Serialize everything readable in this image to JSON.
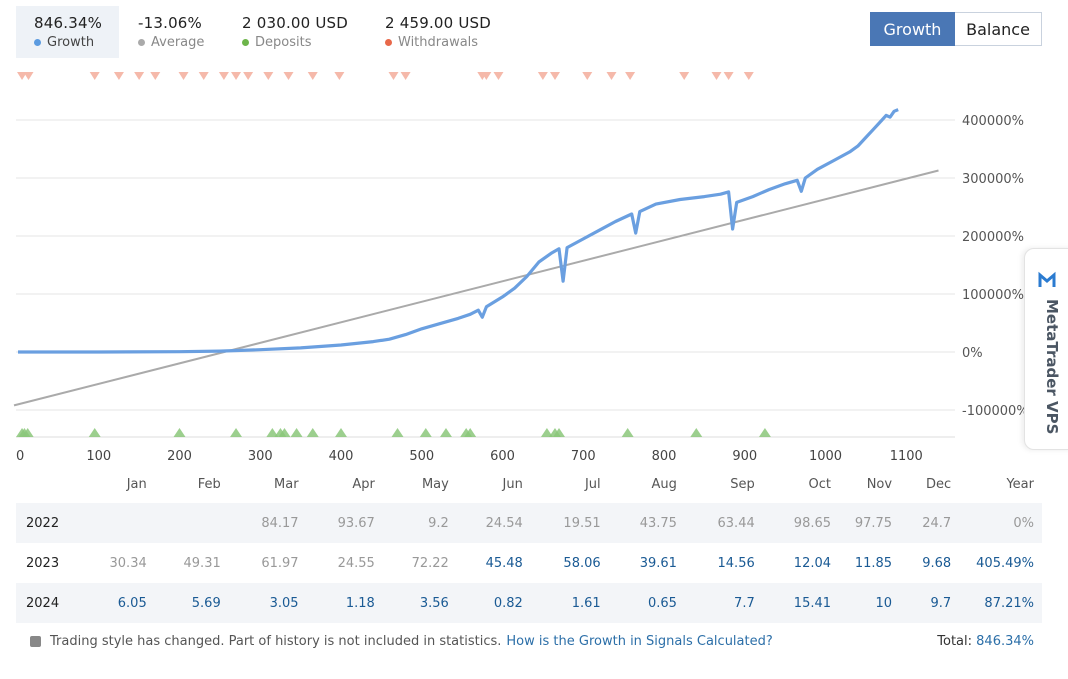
{
  "stats": [
    {
      "value": "846.34%",
      "label": "Growth",
      "color": "#5b9be0",
      "active": true
    },
    {
      "value": "-13.06%",
      "label": "Average",
      "color": "#aaaaaa",
      "active": false
    },
    {
      "value": "2 030.00 USD",
      "label": "Deposits",
      "color": "#6db54a",
      "active": false
    },
    {
      "value": "2 459.00 USD",
      "label": "Withdrawals",
      "color": "#e8684a",
      "active": false
    }
  ],
  "toggle": {
    "growth": "Growth",
    "balance": "Balance"
  },
  "side_tab": "MetaTrader VPS",
  "chart_data": {
    "type": "line",
    "x_ticks": [
      0,
      100,
      200,
      300,
      400,
      500,
      600,
      700,
      800,
      900,
      1000,
      1100
    ],
    "y_ticks": [
      {
        "value": -100000,
        "label": "-100000%"
      },
      {
        "value": 0,
        "label": "0%"
      },
      {
        "value": 100000,
        "label": "100000%"
      },
      {
        "value": 200000,
        "label": "200000%"
      },
      {
        "value": 300000,
        "label": "300000%"
      },
      {
        "value": 400000,
        "label": "400000%"
      }
    ],
    "xlim": [
      0,
      1150
    ],
    "ylim": [
      -145000,
      430000
    ],
    "grid": true,
    "series": [
      {
        "color": "#6a9fe0",
        "points": [
          [
            0,
            0
          ],
          [
            100,
            0
          ],
          [
            200,
            500
          ],
          [
            250,
            1500
          ],
          [
            300,
            4000
          ],
          [
            350,
            7000
          ],
          [
            400,
            12000
          ],
          [
            440,
            18000
          ],
          [
            460,
            22000
          ],
          [
            480,
            30000
          ],
          [
            500,
            40000
          ],
          [
            520,
            48000
          ],
          [
            545,
            58000
          ],
          [
            560,
            65000
          ],
          [
            570,
            72000
          ],
          [
            575,
            60000
          ],
          [
            580,
            78000
          ],
          [
            600,
            95000
          ],
          [
            615,
            110000
          ],
          [
            630,
            130000
          ],
          [
            645,
            155000
          ],
          [
            660,
            170000
          ],
          [
            670,
            178000
          ],
          [
            675,
            122000
          ],
          [
            680,
            180000
          ],
          [
            700,
            195000
          ],
          [
            720,
            210000
          ],
          [
            740,
            225000
          ],
          [
            760,
            238000
          ],
          [
            765,
            205000
          ],
          [
            770,
            242000
          ],
          [
            790,
            255000
          ],
          [
            820,
            263000
          ],
          [
            850,
            268000
          ],
          [
            870,
            272000
          ],
          [
            880,
            276000
          ],
          [
            885,
            212000
          ],
          [
            890,
            258000
          ],
          [
            910,
            268000
          ],
          [
            930,
            280000
          ],
          [
            950,
            290000
          ],
          [
            965,
            296000
          ],
          [
            970,
            277000
          ],
          [
            975,
            300000
          ],
          [
            990,
            315000
          ],
          [
            1010,
            330000
          ],
          [
            1030,
            345000
          ],
          [
            1040,
            355000
          ],
          [
            1050,
            370000
          ],
          [
            1060,
            385000
          ],
          [
            1070,
            400000
          ],
          [
            1075,
            408000
          ],
          [
            1080,
            405000
          ],
          [
            1085,
            415000
          ],
          [
            1090,
            418000
          ]
        ]
      },
      {
        "color": "#aaaaaa",
        "points": [
          [
            -5,
            -92000
          ],
          [
            1140,
            313000
          ]
        ]
      }
    ],
    "withdrawal_markers": [
      5,
      13,
      95,
      125,
      150,
      170,
      205,
      230,
      255,
      270,
      285,
      310,
      335,
      365,
      398,
      465,
      480,
      575,
      580,
      595,
      650,
      665,
      705,
      735,
      758,
      825,
      865,
      880,
      905
    ],
    "deposit_markers": [
      5,
      8,
      12,
      95,
      200,
      270,
      315,
      325,
      330,
      345,
      365,
      400,
      470,
      505,
      530,
      555,
      560,
      655,
      665,
      670,
      755,
      840,
      925
    ]
  },
  "table": {
    "headers": [
      "",
      "Jan",
      "Feb",
      "Mar",
      "Apr",
      "May",
      "Jun",
      "Jul",
      "Aug",
      "Sep",
      "Oct",
      "Nov",
      "Dec",
      "Year"
    ],
    "rows": [
      {
        "year": "2022",
        "cells": [
          "",
          "",
          "84.17",
          "93.67",
          "9.2",
          "24.54",
          "19.51",
          "43.75",
          "63.44",
          "98.65",
          "97.75",
          "24.7",
          "0%"
        ],
        "pos": [
          false,
          false,
          false,
          false,
          false,
          false,
          false,
          false,
          false,
          false,
          false,
          false,
          false
        ]
      },
      {
        "year": "2023",
        "cells": [
          "30.34",
          "49.31",
          "61.97",
          "24.55",
          "72.22",
          "45.48",
          "58.06",
          "39.61",
          "14.56",
          "12.04",
          "11.85",
          "9.68",
          "405.49%"
        ],
        "pos": [
          false,
          false,
          false,
          false,
          false,
          true,
          true,
          true,
          true,
          true,
          true,
          true,
          true
        ]
      },
      {
        "year": "2024",
        "cells": [
          "6.05",
          "5.69",
          "3.05",
          "1.18",
          "3.56",
          "0.82",
          "1.61",
          "0.65",
          "7.7",
          "15.41",
          "10",
          "9.7",
          "87.21%"
        ],
        "pos": [
          true,
          true,
          true,
          true,
          true,
          true,
          true,
          true,
          true,
          true,
          true,
          true,
          true
        ]
      }
    ]
  },
  "footer": {
    "note": "Trading style has changed. Part of history is not included in statistics.",
    "link": "How is the Growth in Signals Calculated?",
    "total_label": "Total:",
    "total_value": "846.34%"
  }
}
